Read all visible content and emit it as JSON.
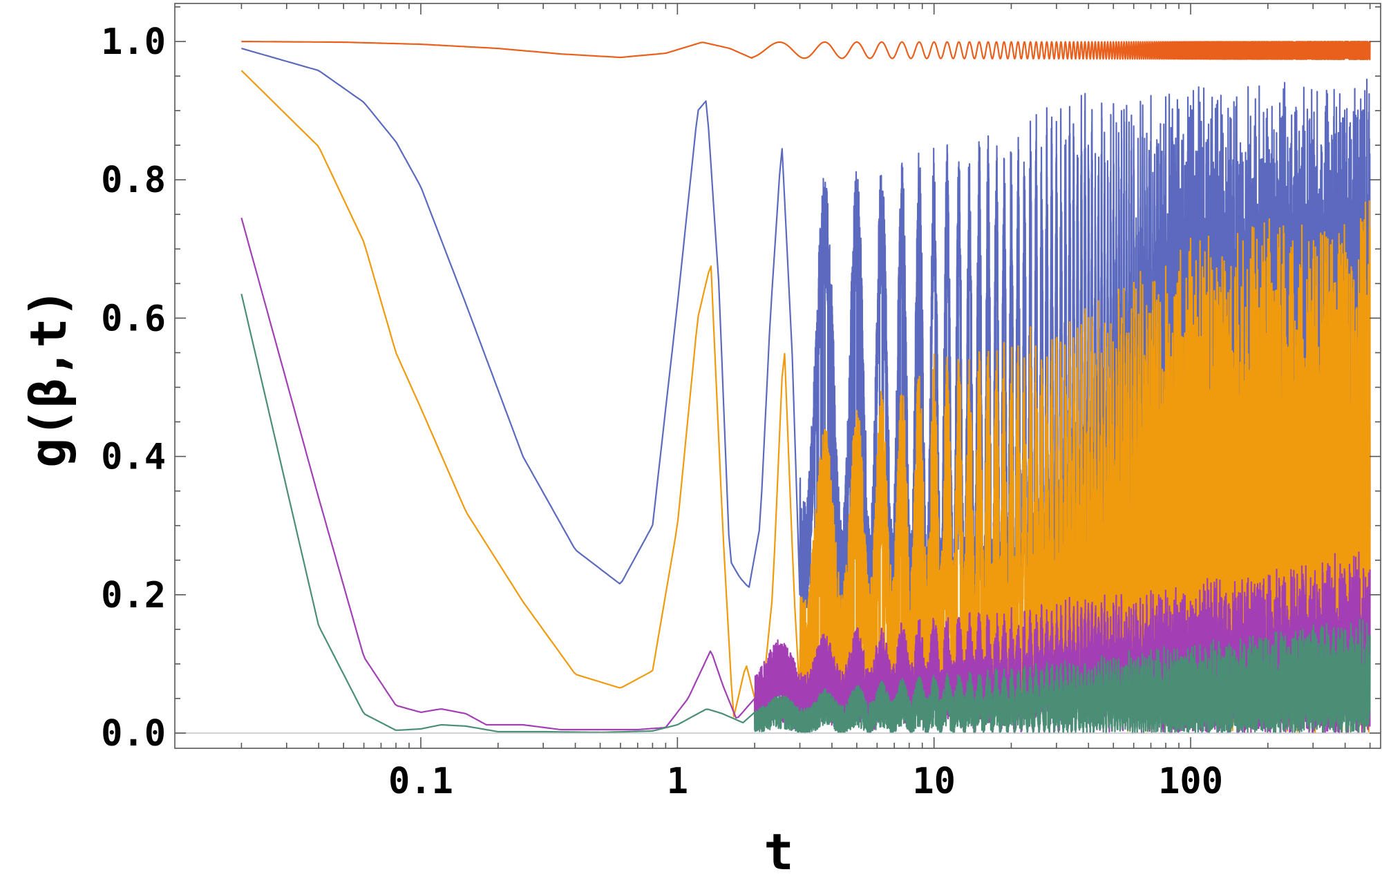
{
  "chart_data": {
    "type": "line",
    "title": "",
    "xlabel": "t",
    "ylabel": "g(β,t)",
    "xscale": "log",
    "xlim": [
      0.011,
      550
    ],
    "ylim": [
      -0.022,
      1.055
    ],
    "xticks": [
      {
        "value": 0.1,
        "label": "0.1"
      },
      {
        "value": 1,
        "label": "1"
      },
      {
        "value": 10,
        "label": "10"
      },
      {
        "value": 100,
        "label": "100"
      }
    ],
    "yticks": [
      {
        "value": 0.0,
        "label": "0.0"
      },
      {
        "value": 0.2,
        "label": "0.2"
      },
      {
        "value": 0.4,
        "label": "0.4"
      },
      {
        "value": 0.6,
        "label": "0.6"
      },
      {
        "value": 0.8,
        "label": "0.8"
      },
      {
        "value": 1.0,
        "label": "1.0"
      }
    ],
    "grid": false,
    "legend": "none",
    "t_range": [
      0.02,
      500
    ],
    "series": [
      {
        "color": "#e8601c",
        "smooth": [
          [
            0.02,
            1.0
          ],
          [
            0.05,
            0.999
          ],
          [
            0.1,
            0.996
          ],
          [
            0.2,
            0.99
          ],
          [
            0.35,
            0.982
          ],
          [
            0.6,
            0.977
          ],
          [
            0.9,
            0.983
          ],
          [
            1.25,
            0.999
          ],
          [
            1.6,
            0.99
          ],
          [
            1.95,
            0.976
          ]
        ],
        "envelope": [
          [
            1.95,
            0.976,
            0.999
          ],
          [
            500,
            0.974,
            1.0
          ]
        ],
        "period": 1.25,
        "noise": 0
      },
      {
        "color": "#5b6abf",
        "smooth": [
          [
            0.02,
            0.99
          ],
          [
            0.04,
            0.958
          ],
          [
            0.06,
            0.912
          ],
          [
            0.08,
            0.855
          ],
          [
            0.1,
            0.79
          ],
          [
            0.15,
            0.62
          ],
          [
            0.25,
            0.4
          ],
          [
            0.4,
            0.265
          ],
          [
            0.6,
            0.215
          ],
          [
            0.8,
            0.3
          ],
          [
            1.0,
            0.62
          ],
          [
            1.2,
            0.9
          ],
          [
            1.3,
            0.915
          ],
          [
            1.45,
            0.65
          ],
          [
            1.6,
            0.25
          ],
          [
            1.75,
            0.225
          ],
          [
            1.9,
            0.21
          ],
          [
            2.1,
            0.3
          ],
          [
            2.3,
            0.6
          ],
          [
            2.55,
            0.855
          ],
          [
            2.8,
            0.55
          ],
          [
            3.0,
            0.2
          ]
        ],
        "envelope": [
          [
            3.0,
            0.18,
            0.8
          ],
          [
            10,
            0.09,
            0.85
          ],
          [
            40,
            0.03,
            0.93
          ],
          [
            100,
            0.03,
            0.94
          ],
          [
            500,
            0.02,
            0.95
          ]
        ],
        "period": 1.25,
        "noise": 0.25
      },
      {
        "color": "#f09a0e",
        "smooth": [
          [
            0.02,
            0.958
          ],
          [
            0.04,
            0.848
          ],
          [
            0.06,
            0.71
          ],
          [
            0.08,
            0.55
          ],
          [
            0.1,
            0.47
          ],
          [
            0.15,
            0.32
          ],
          [
            0.25,
            0.19
          ],
          [
            0.4,
            0.085
          ],
          [
            0.6,
            0.065
          ],
          [
            0.8,
            0.09
          ],
          [
            1.0,
            0.3
          ],
          [
            1.2,
            0.6
          ],
          [
            1.35,
            0.68
          ],
          [
            1.5,
            0.3
          ],
          [
            1.65,
            0.02
          ],
          [
            1.85,
            0.1
          ],
          [
            2.1,
            0.02
          ],
          [
            2.35,
            0.2
          ],
          [
            2.6,
            0.575
          ],
          [
            2.85,
            0.2
          ],
          [
            3.0,
            0.05
          ]
        ],
        "envelope": [
          [
            3.0,
            0.0,
            0.42
          ],
          [
            10,
            0.0,
            0.55
          ],
          [
            30,
            0.0,
            0.6
          ],
          [
            100,
            0.0,
            0.72
          ],
          [
            500,
            0.0,
            0.78
          ]
        ],
        "period": 1.25,
        "noise": 0.45
      },
      {
        "color": "#a33fb5",
        "smooth": [
          [
            0.02,
            0.745
          ],
          [
            0.04,
            0.34
          ],
          [
            0.06,
            0.11
          ],
          [
            0.08,
            0.04
          ],
          [
            0.1,
            0.03
          ],
          [
            0.12,
            0.035
          ],
          [
            0.15,
            0.028
          ],
          [
            0.18,
            0.012
          ],
          [
            0.25,
            0.012
          ],
          [
            0.35,
            0.005
          ],
          [
            0.5,
            0.005
          ],
          [
            0.7,
            0.005
          ],
          [
            0.9,
            0.008
          ],
          [
            1.1,
            0.05
          ],
          [
            1.35,
            0.12
          ],
          [
            1.5,
            0.07
          ],
          [
            1.7,
            0.02
          ],
          [
            2.0,
            0.05
          ]
        ],
        "envelope": [
          [
            2.0,
            0.0,
            0.13
          ],
          [
            10,
            0.0,
            0.17
          ],
          [
            100,
            0.0,
            0.22
          ],
          [
            500,
            0.0,
            0.27
          ]
        ],
        "period": 1.25,
        "noise": 0.6
      },
      {
        "color": "#4a8e76",
        "smooth": [
          [
            0.02,
            0.635
          ],
          [
            0.04,
            0.155
          ],
          [
            0.06,
            0.028
          ],
          [
            0.08,
            0.004
          ],
          [
            0.1,
            0.006
          ],
          [
            0.12,
            0.012
          ],
          [
            0.15,
            0.01
          ],
          [
            0.2,
            0.002
          ],
          [
            0.3,
            0.002
          ],
          [
            0.5,
            0.001
          ],
          [
            0.8,
            0.003
          ],
          [
            1.0,
            0.012
          ],
          [
            1.3,
            0.035
          ],
          [
            1.5,
            0.028
          ],
          [
            1.8,
            0.015
          ],
          [
            2.0,
            0.03
          ]
        ],
        "envelope": [
          [
            2.0,
            0.0,
            0.05
          ],
          [
            10,
            0.0,
            0.085
          ],
          [
            100,
            0.0,
            0.13
          ],
          [
            500,
            0.0,
            0.17
          ]
        ],
        "period": 1.25,
        "noise": 0.6
      }
    ]
  }
}
